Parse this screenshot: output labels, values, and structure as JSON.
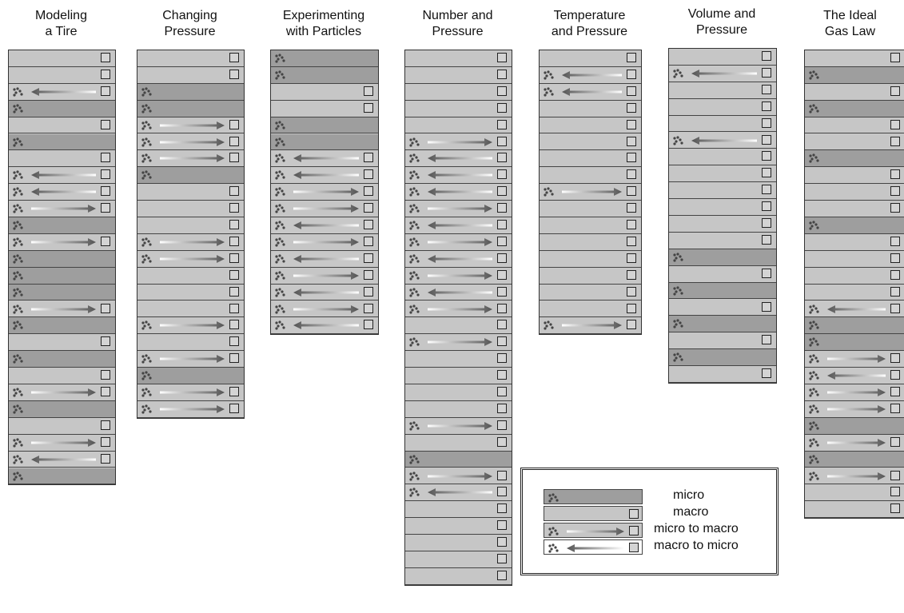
{
  "columns": [
    {
      "title": "Modeling\na Tire",
      "rows": [
        "macro",
        "macro",
        "u2m",
        "micro",
        "macro",
        "micro",
        "macro",
        "u2m",
        "u2m",
        "m2m",
        "micro",
        "m2m",
        "micro",
        "micro",
        "micro",
        "m2m",
        "micro",
        "macro",
        "micro",
        "macro",
        "m2m",
        "micro",
        "macro",
        "m2m",
        "u2m",
        "micro"
      ]
    },
    {
      "title": "Changing\nPressure",
      "rows": [
        "macro",
        "macro",
        "micro",
        "micro",
        "m2m",
        "m2m",
        "m2m",
        "micro",
        "macro",
        "macro",
        "macro",
        "m2m",
        "m2m",
        "macro",
        "macro",
        "macro",
        "m2m",
        "macro",
        "m2m",
        "micro",
        "m2m",
        "m2m"
      ]
    },
    {
      "title": "Experimenting\nwith Particles",
      "rows": [
        "micro",
        "micro",
        "macro",
        "macro",
        "micro",
        "micro",
        "u2m",
        "u2m",
        "m2m",
        "m2m",
        "u2m",
        "m2m",
        "u2m",
        "m2m",
        "u2m",
        "m2m",
        "u2m"
      ]
    },
    {
      "title": "Number and\nPressure",
      "rows": [
        "macro",
        "macro",
        "macro",
        "macro",
        "macro",
        "m2m",
        "u2m",
        "u2m",
        "u2m",
        "m2m",
        "u2m",
        "m2m",
        "u2m",
        "m2m",
        "u2m",
        "m2m",
        "macro",
        "m2m",
        "macro",
        "macro",
        "macro",
        "macro",
        "m2m",
        "macro",
        "micro",
        "m2m",
        "u2m",
        "macro",
        "macro",
        "macro",
        "macro",
        "macro"
      ]
    },
    {
      "title": "Temperature\nand Pressure",
      "rows": [
        "macro",
        "u2m",
        "u2m",
        "macro",
        "macro",
        "macro",
        "macro",
        "macro",
        "m2m",
        "macro",
        "macro",
        "macro",
        "macro",
        "macro",
        "macro",
        "macro",
        "m2m"
      ]
    },
    {
      "title": "Volume and\nPressure",
      "rows": [
        "macro",
        "u2m",
        "macro",
        "macro",
        "macro",
        "u2m",
        "macro",
        "macro",
        "macro",
        "macro",
        "macro",
        "macro",
        "micro",
        "macro",
        "micro",
        "macro",
        "micro",
        "macro",
        "micro",
        "macro"
      ]
    },
    {
      "title": "The Ideal\nGas Law",
      "rows": [
        "macro",
        "micro",
        "macro",
        "micro",
        "macro",
        "macro",
        "micro",
        "macro",
        "macro",
        "macro",
        "micro",
        "macro",
        "macro",
        "macro",
        "macro",
        "u2m",
        "micro",
        "micro",
        "m2m",
        "u2m",
        "m2m",
        "m2m",
        "micro",
        "m2m",
        "micro",
        "m2m",
        "macro",
        "macro"
      ]
    }
  ],
  "legend": {
    "items": [
      {
        "type": "micro",
        "label": "micro"
      },
      {
        "type": "macro",
        "label": "macro"
      },
      {
        "type": "m2m",
        "label": "micro to macro"
      },
      {
        "type": "u2m",
        "label": "macro to micro"
      }
    ]
  },
  "colors": {
    "micro_row": "#9e9e9e",
    "macro_row": "#c6c6c6",
    "arrow_dark": "#555555",
    "arrow_light": "#ffffff"
  }
}
